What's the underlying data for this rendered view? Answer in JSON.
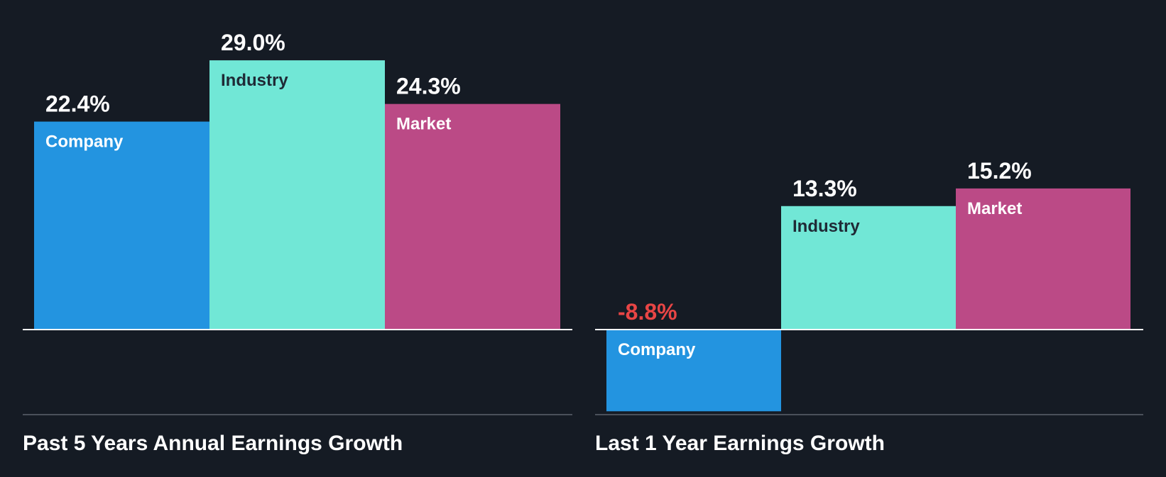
{
  "colors": {
    "background": "#151b24",
    "company": "#2394e0",
    "industry": "#71e7d6",
    "market": "#bb4a86",
    "baseline": "#ffffff",
    "bottom_rule": "#4a505a",
    "positive_value": "#ffffff",
    "negative_value": "#e84545",
    "label_on_dark_bar": "#ffffff",
    "label_on_light_bar": "#1f2a36"
  },
  "chart_data": [
    {
      "type": "bar",
      "title": "Past 5 Years Annual Earnings Growth",
      "categories": [
        "Company",
        "Industry",
        "Market"
      ],
      "values": [
        22.4,
        29.0,
        24.3
      ],
      "value_labels": [
        "22.4%",
        "29.0%",
        "24.3%"
      ],
      "unit": "%",
      "ylim": [
        -9.0,
        29.0
      ],
      "grid": false,
      "legend": "none"
    },
    {
      "type": "bar",
      "title": "Last 1 Year Earnings Growth",
      "categories": [
        "Company",
        "Industry",
        "Market"
      ],
      "values": [
        -8.8,
        13.3,
        15.2
      ],
      "value_labels": [
        "-8.8%",
        "13.3%",
        "15.2%"
      ],
      "unit": "%",
      "ylim": [
        -9.0,
        29.0
      ],
      "grid": false,
      "legend": "none"
    }
  ]
}
